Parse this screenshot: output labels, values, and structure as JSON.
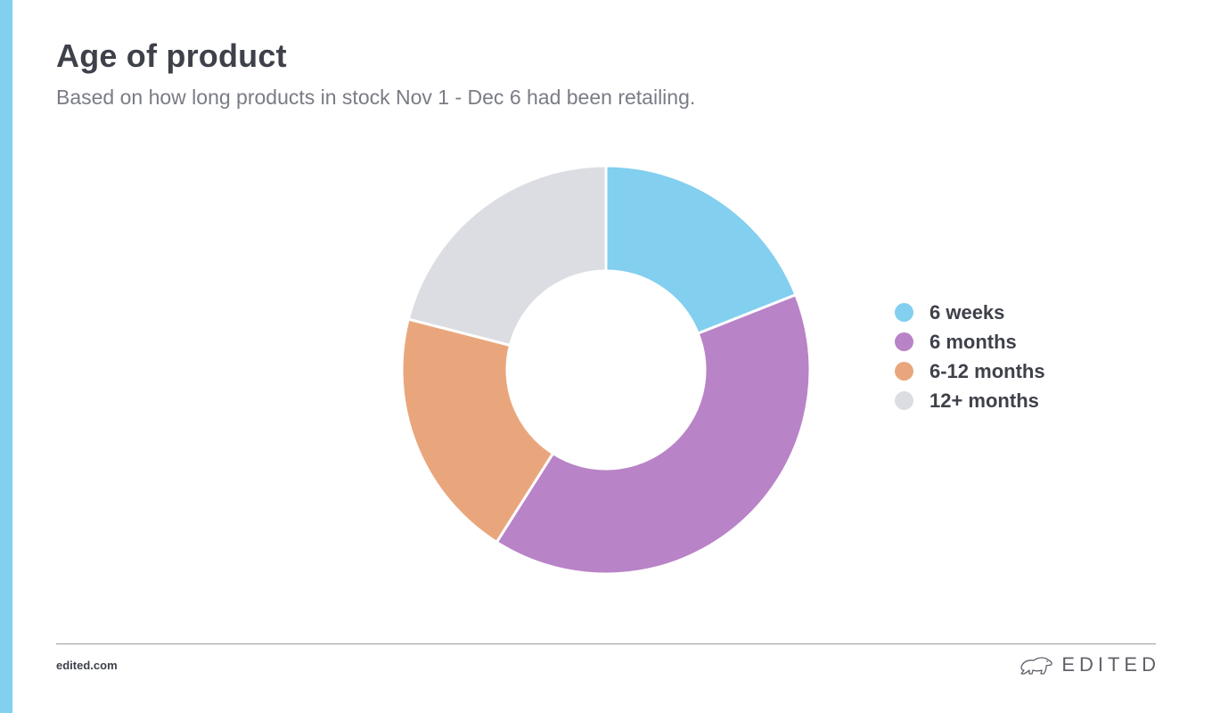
{
  "title": "Age of product",
  "subtitle": "Based on how long products in stock Nov 1 - Dec 6 had been retailing.",
  "footer": {
    "site": "edited.com",
    "brand": "EDITED"
  },
  "colors": {
    "accent": "#82cfef"
  },
  "chart_data": {
    "type": "pie",
    "donut": true,
    "categories": [
      "6 weeks",
      "6 months",
      "6-12 months",
      "12+ months"
    ],
    "values": [
      19,
      40,
      20,
      21
    ],
    "colors": [
      "#82cfef",
      "#b983c7",
      "#e9a67d",
      "#dcdde2"
    ],
    "legend": "right"
  }
}
